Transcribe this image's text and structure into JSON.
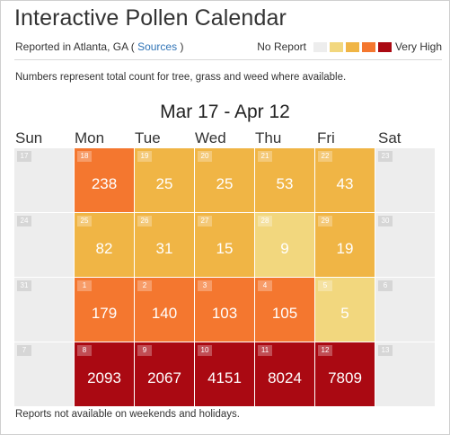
{
  "header": {
    "title": "Interactive Pollen Calendar",
    "reported_prefix": "Reported in Atlanta, GA ( ",
    "sources_link": "Sources",
    "reported_suffix": " )"
  },
  "legend": {
    "low_label": "No Report",
    "high_label": "Very High",
    "colors": [
      "#ededed",
      "#f2d77e",
      "#f0b545",
      "#f4772f",
      "#aa0912"
    ]
  },
  "note": "Numbers represent total count for tree, grass and weed where available.",
  "date_range": "Mar 17 - Apr 12",
  "days": [
    "Sun",
    "Mon",
    "Tue",
    "Wed",
    "Thu",
    "Fri",
    "Sat"
  ],
  "weeks": [
    [
      {
        "day": "17",
        "value": "",
        "level": "none"
      },
      {
        "day": "18",
        "value": "238",
        "level": "high"
      },
      {
        "day": "19",
        "value": "25",
        "level": "moderate"
      },
      {
        "day": "20",
        "value": "25",
        "level": "moderate"
      },
      {
        "day": "21",
        "value": "53",
        "level": "moderate"
      },
      {
        "day": "22",
        "value": "43",
        "level": "moderate"
      },
      {
        "day": "23",
        "value": "",
        "level": "none"
      }
    ],
    [
      {
        "day": "24",
        "value": "",
        "level": "none"
      },
      {
        "day": "25",
        "value": "82",
        "level": "moderate"
      },
      {
        "day": "26",
        "value": "31",
        "level": "moderate"
      },
      {
        "day": "27",
        "value": "15",
        "level": "moderate"
      },
      {
        "day": "28",
        "value": "9",
        "level": "low"
      },
      {
        "day": "29",
        "value": "19",
        "level": "moderate"
      },
      {
        "day": "30",
        "value": "",
        "level": "none"
      }
    ],
    [
      {
        "day": "31",
        "value": "",
        "level": "none"
      },
      {
        "day": "1",
        "value": "179",
        "level": "high"
      },
      {
        "day": "2",
        "value": "140",
        "level": "high"
      },
      {
        "day": "3",
        "value": "103",
        "level": "high"
      },
      {
        "day": "4",
        "value": "105",
        "level": "high"
      },
      {
        "day": "5",
        "value": "5",
        "level": "low"
      },
      {
        "day": "6",
        "value": "",
        "level": "none"
      }
    ],
    [
      {
        "day": "7",
        "value": "",
        "level": "none"
      },
      {
        "day": "8",
        "value": "2093",
        "level": "very_high"
      },
      {
        "day": "9",
        "value": "2067",
        "level": "very_high"
      },
      {
        "day": "10",
        "value": "4151",
        "level": "very_high"
      },
      {
        "day": "11",
        "value": "8024",
        "level": "very_high"
      },
      {
        "day": "12",
        "value": "7809",
        "level": "very_high"
      },
      {
        "day": "13",
        "value": "",
        "level": "none"
      }
    ]
  ],
  "footer": "Reports not available on weekends and holidays."
}
